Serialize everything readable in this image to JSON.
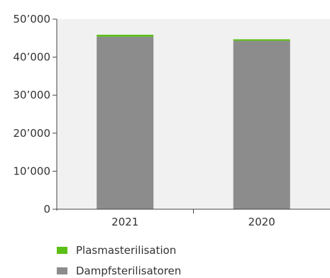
{
  "chart_data": {
    "type": "bar",
    "stacked": true,
    "categories": [
      "2021",
      "2020"
    ],
    "series": [
      {
        "name": "Dampfsterilisatoren",
        "color": "#8c8c8c",
        "values": [
          45400,
          44300
        ]
      },
      {
        "name": "Plasmasterilisation",
        "color": "#5cbf16",
        "values": [
          500,
          400
        ]
      }
    ],
    "ylim": [
      0,
      50000
    ],
    "yticks": [
      0,
      10000,
      20000,
      30000,
      40000,
      50000
    ],
    "ytick_labels": [
      "0",
      "10’000",
      "20’000",
      "30’000",
      "40’000",
      "50’000"
    ],
    "plot_background": "#f1f1f1",
    "legend": {
      "position": "bottom",
      "items": [
        "Plasmasterilisation",
        "Dampfsterilisatoren"
      ]
    },
    "grid": false
  }
}
